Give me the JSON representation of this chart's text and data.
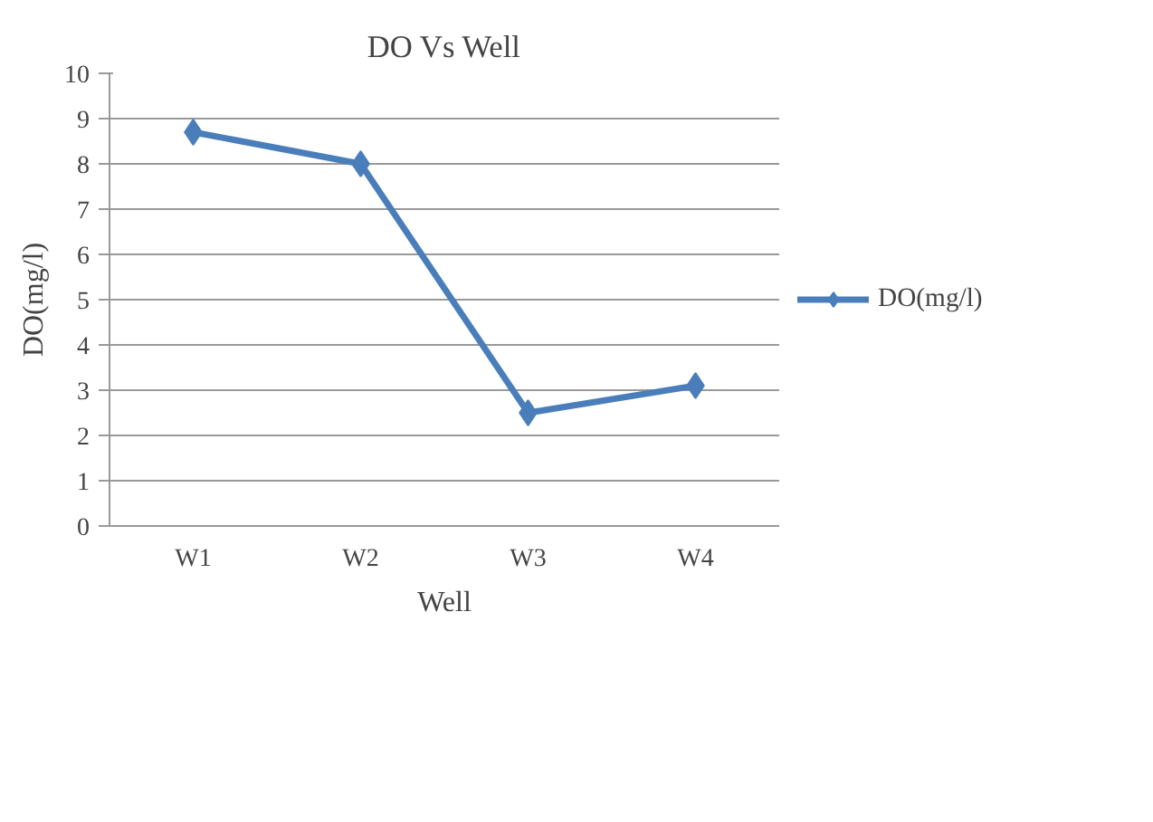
{
  "chart_data": {
    "type": "line",
    "title": "DO Vs Well",
    "xlabel": "Well",
    "ylabel": "DO(mg/l)",
    "categories": [
      "W1",
      "W2",
      "W3",
      "W4"
    ],
    "series": [
      {
        "name": "DO(mg/l)",
        "color": "#4a7ebb",
        "values": [
          8.7,
          8.0,
          2.5,
          3.1
        ]
      }
    ],
    "ylim": [
      0,
      10
    ],
    "yticks": [
      0,
      1,
      2,
      3,
      4,
      5,
      6,
      7,
      8,
      9,
      10
    ],
    "grid": "y",
    "legend": "right",
    "marker": "diamond"
  }
}
